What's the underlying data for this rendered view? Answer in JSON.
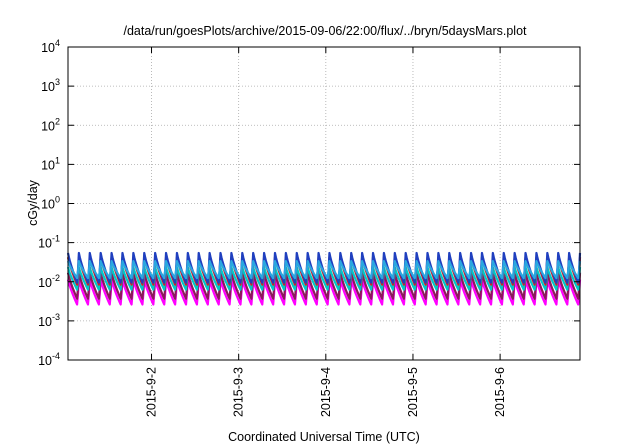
{
  "chart_data": {
    "type": "line",
    "title": "/data/run/goesPlots/archive/2015-09-06/22:00/flux/../bryn/5daysMars.plot",
    "xlabel": "Coordinated Universal Time (UTC)",
    "ylabel": "cGy/day",
    "x_range": [
      "2015-09-01 01:00",
      "2015-09-06 22:00"
    ],
    "ylim": [
      0.0001,
      10000
    ],
    "yscale": "log",
    "grid": true,
    "legend": "none",
    "x_ticks": [
      "2015-9-2",
      "2015-9-3",
      "2015-9-4",
      "2015-9-5",
      "2015-9-6"
    ],
    "y_ticks": [
      {
        "value": 0.0001,
        "base": "10",
        "exp": "-4"
      },
      {
        "value": 0.001,
        "base": "10",
        "exp": "-3"
      },
      {
        "value": 0.01,
        "base": "10",
        "exp": "-2"
      },
      {
        "value": 0.1,
        "base": "10",
        "exp": "-1"
      },
      {
        "value": 1,
        "base": "10",
        "exp": "0"
      },
      {
        "value": 10,
        "base": "10",
        "exp": "1"
      },
      {
        "value": 100,
        "base": "10",
        "exp": "2"
      },
      {
        "value": 1000,
        "base": "10",
        "exp": "3"
      },
      {
        "value": 10000,
        "base": "10",
        "exp": "4"
      }
    ],
    "cycle_hours": 3,
    "series": [
      {
        "color": "#ff00ff",
        "peak": 0.012,
        "trough": 0.0025
      },
      {
        "color": "#8b1a5a",
        "peak": 0.018,
        "trough": 0.0035
      },
      {
        "color": "#00c8c8",
        "peak": 0.025,
        "trough": 0.006
      },
      {
        "color": "#cc2222",
        "peak": 0.045,
        "trough": 0.008
      },
      {
        "color": "#1f3fbf",
        "peak": 0.058,
        "trough": 0.009
      },
      {
        "color": "#2aa7e0",
        "peak": 0.035,
        "trough": 0.012
      }
    ]
  }
}
